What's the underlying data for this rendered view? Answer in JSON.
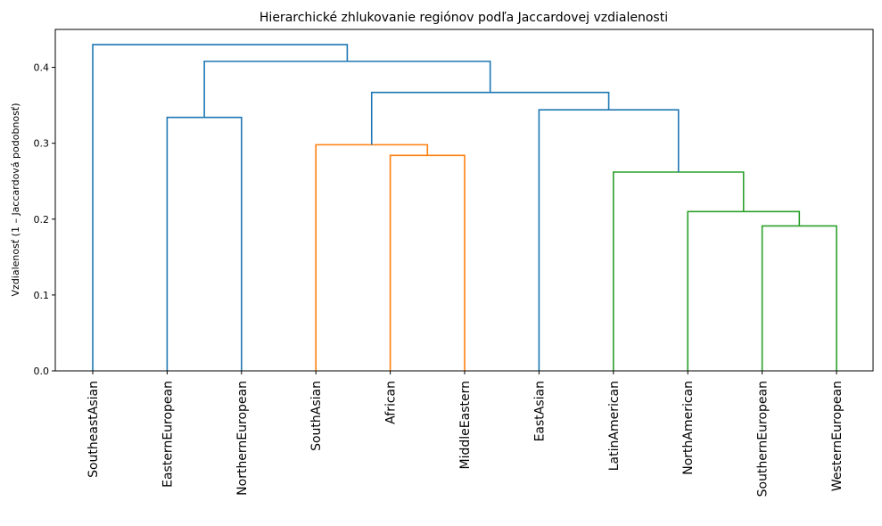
{
  "chart_data": {
    "type": "dendrogram",
    "title": "Hierarchické zhlukovanie regiónov podľa Jaccardovej vzdialenosti",
    "xlabel": "",
    "ylabel": "Vzdialenosť (1 – Jaccardová podobnosť)",
    "ylim": [
      0,
      0.45
    ],
    "yticks": [
      "0.0",
      "0.1",
      "0.2",
      "0.3",
      "0.4"
    ],
    "leaves": [
      "SoutheastAsian",
      "EasternEuropean",
      "NorthernEuropean",
      "SouthAsian",
      "African",
      "MiddleEastern",
      "EastAsian",
      "LatinAmerican",
      "NorthAmerican",
      "SouthernEuropean",
      "WesternEuropean"
    ],
    "colors": {
      "default": "#1f77b4",
      "orange": "#ff7f0e",
      "green": "#2ca02c"
    },
    "merges": [
      {
        "id": "m1",
        "left": "SouthernEuropean",
        "right": "WesternEuropean",
        "height": 0.191,
        "color": "green"
      },
      {
        "id": "m2",
        "left": "NorthAmerican",
        "right": "m1",
        "height": 0.21,
        "color": "green"
      },
      {
        "id": "m3",
        "left": "LatinAmerican",
        "right": "m2",
        "height": 0.262,
        "color": "green"
      },
      {
        "id": "m4",
        "left": "African",
        "right": "MiddleEastern",
        "height": 0.284,
        "color": "orange"
      },
      {
        "id": "m5",
        "left": "SouthAsian",
        "right": "m4",
        "height": 0.298,
        "color": "orange"
      },
      {
        "id": "m6",
        "left": "EasternEuropean",
        "right": "NorthernEuropean",
        "height": 0.334,
        "color": "default"
      },
      {
        "id": "m7",
        "left": "EastAsian",
        "right": "m3",
        "height": 0.344,
        "color": "default"
      },
      {
        "id": "m8",
        "left": "m5",
        "right": "m7",
        "height": 0.367,
        "color": "default"
      },
      {
        "id": "m9",
        "left": "m6",
        "right": "m8",
        "height": 0.408,
        "color": "default"
      },
      {
        "id": "m10",
        "left": "SoutheastAsian",
        "right": "m9",
        "height": 0.43,
        "color": "default"
      }
    ]
  }
}
